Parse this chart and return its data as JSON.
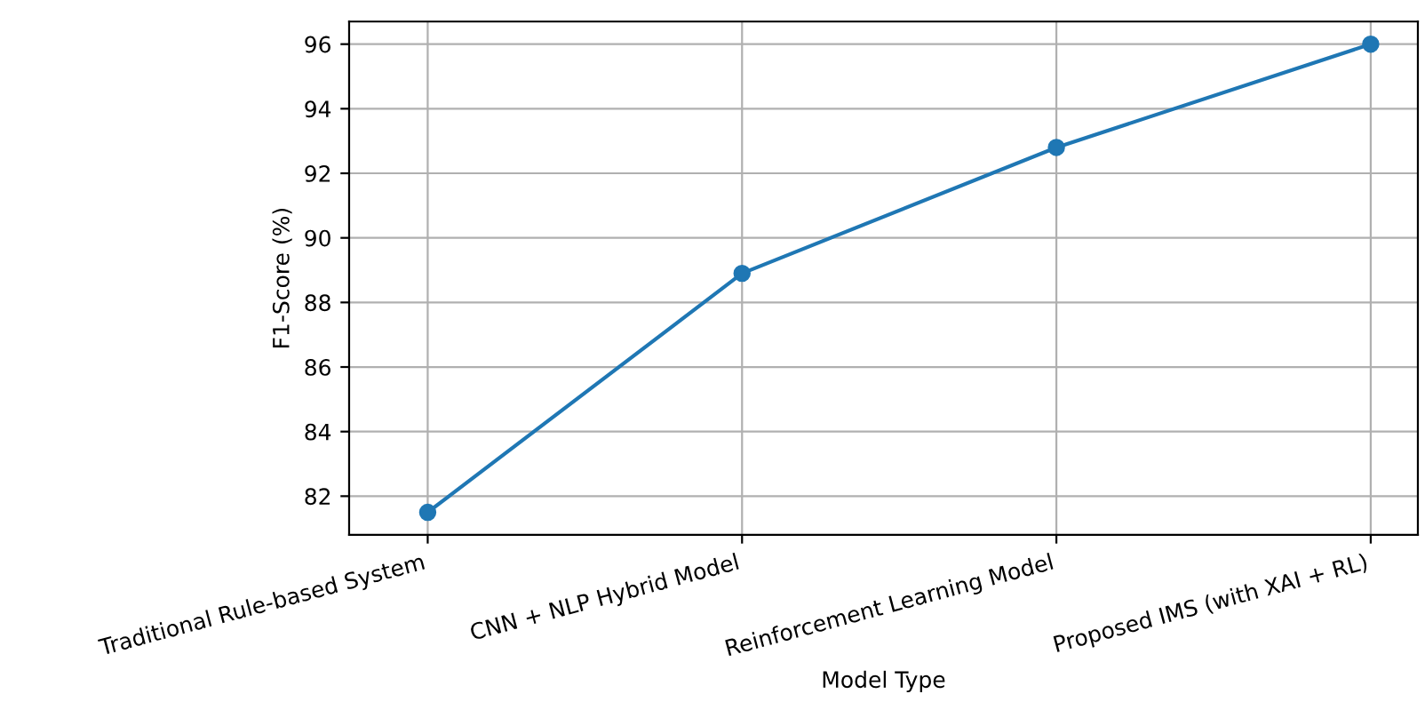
{
  "chart_data": {
    "type": "line",
    "xlabel": "Model Type",
    "ylabel": "F1-Score (%)",
    "categories": [
      "Traditional Rule-based System",
      "CNN + NLP Hybrid Model",
      "Reinforcement Learning Model",
      "Proposed IMS (with XAI + RL)"
    ],
    "series": [
      {
        "color": "#1f77b4",
        "values": [
          81.5,
          88.9,
          92.8,
          96.0
        ]
      }
    ],
    "ylim": [
      80.8,
      96.7
    ],
    "yticks": [
      82,
      84,
      86,
      88,
      90,
      92,
      94,
      96
    ],
    "grid": true,
    "marker": "circle",
    "line_style": "solid"
  }
}
